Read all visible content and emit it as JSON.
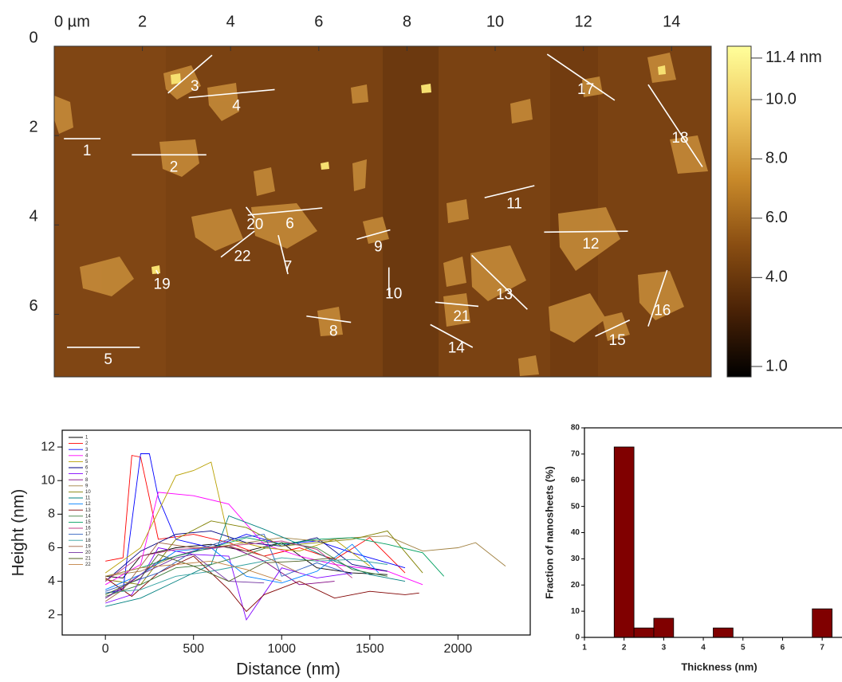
{
  "chart_data": [
    {
      "type": "image",
      "xlim": [
        0,
        14.9
      ],
      "xticks": [
        {
          "value": 0,
          "label": "0 µm"
        },
        2,
        4,
        6,
        8,
        10,
        12,
        14
      ],
      "ylim": [
        0,
        7.4
      ],
      "yticks": [
        0,
        2,
        4,
        6
      ],
      "y_reversed": true,
      "colorbar": {
        "clim": [
          0.65,
          11.8
        ],
        "ticks": [
          {
            "value": 11.4,
            "label": "11.4 nm"
          },
          {
            "value": 10,
            "label": "10.0"
          },
          {
            "value": 8,
            "label": "8.0"
          },
          {
            "value": 6,
            "label": "6.0"
          },
          {
            "value": 4,
            "label": "4.0"
          },
          {
            "value": 1,
            "label": "1.0"
          }
        ],
        "colormap": [
          "#000000",
          "#4a2206",
          "#8a4e12",
          "#c98a2a",
          "#efc860",
          "#ffff9a"
        ]
      },
      "line_color": "#ffffff",
      "lines": [
        {
          "label": "1",
          "x": [
            0.22,
            1.05
          ],
          "y": [
            2.07,
            2.07
          ]
        },
        {
          "label": "2",
          "x": [
            1.76,
            3.45
          ],
          "y": [
            2.43,
            2.43
          ]
        },
        {
          "label": "3",
          "x": [
            2.58,
            3.58
          ],
          "y": [
            1.05,
            0.2
          ]
        },
        {
          "label": "4",
          "x": [
            3.05,
            5.0
          ],
          "y": [
            1.15,
            0.97
          ]
        },
        {
          "label": "5",
          "x": [
            0.29,
            1.94
          ],
          "y": [
            6.74,
            6.74
          ]
        },
        {
          "label": "6",
          "x": [
            4.39,
            6.08
          ],
          "y": [
            3.78,
            3.62
          ]
        },
        {
          "label": "7",
          "x": [
            5.08,
            5.3
          ],
          "y": [
            4.23,
            5.1
          ]
        },
        {
          "label": "8",
          "x": [
            5.72,
            6.73
          ],
          "y": [
            6.04,
            6.18
          ]
        },
        {
          "label": "9",
          "x": [
            6.86,
            7.62
          ],
          "y": [
            4.32,
            4.11
          ]
        },
        {
          "label": "10",
          "x": [
            7.59,
            7.59
          ],
          "y": [
            4.95,
            5.59
          ]
        },
        {
          "label": "11",
          "x": [
            9.76,
            10.89
          ],
          "y": [
            3.39,
            3.12
          ]
        },
        {
          "label": "12",
          "x": [
            11.11,
            13.01
          ],
          "y": [
            4.16,
            4.14
          ]
        },
        {
          "label": "13",
          "x": [
            9.47,
            10.73
          ],
          "y": [
            4.68,
            5.89
          ]
        },
        {
          "label": "14",
          "x": [
            8.53,
            9.49
          ],
          "y": [
            6.23,
            6.74
          ]
        },
        {
          "label": "15",
          "x": [
            12.27,
            13.05
          ],
          "y": [
            6.49,
            6.13
          ]
        },
        {
          "label": "16",
          "x": [
            13.47,
            13.9
          ],
          "y": [
            6.27,
            5.01
          ]
        },
        {
          "label": "17",
          "x": [
            11.18,
            12.71
          ],
          "y": [
            0.18,
            1.21
          ]
        },
        {
          "label": "18",
          "x": [
            13.47,
            14.7
          ],
          "y": [
            0.86,
            2.7
          ]
        },
        {
          "label": "19",
          "x": [
            2.31,
            2.36
          ],
          "y": [
            5.01,
            5.1
          ]
        },
        {
          "label": "20",
          "x": [
            4.35,
            4.54
          ],
          "y": [
            3.6,
            3.84
          ]
        },
        {
          "label": "21",
          "x": [
            8.64,
            9.62
          ],
          "y": [
            5.73,
            5.82
          ]
        },
        {
          "label": "22",
          "x": [
            3.78,
            4.54
          ],
          "y": [
            4.72,
            4.14
          ]
        }
      ]
    },
    {
      "type": "line",
      "x_label": "Distance (nm)",
      "y_label": "Height (nm)",
      "xlim": [
        -245,
        2410
      ],
      "xticks": [
        0,
        500,
        1000,
        1500,
        2000
      ],
      "ylim": [
        0.8,
        13
      ],
      "yticks": [
        2,
        4,
        6,
        8,
        10,
        12
      ],
      "legend": "top-left",
      "series": [
        {
          "name": "1",
          "color": "#000000",
          "x": [
            0,
            100,
            200,
            400,
            600,
            800,
            1000,
            1200,
            1400,
            1600
          ],
          "values": [
            4.3,
            4.2,
            5.5,
            6.0,
            6.2,
            5.8,
            6.3,
            4.8,
            4.5,
            4.4
          ]
        },
        {
          "name": "2",
          "color": "#ff0000",
          "x": [
            0,
            100,
            150,
            200,
            300,
            500,
            700,
            900,
            1100,
            1300,
            1500,
            1700
          ],
          "values": [
            5.2,
            5.4,
            11.5,
            11.4,
            6.5,
            6.8,
            6.3,
            5.5,
            6.0,
            5.3,
            6.6,
            4.5
          ]
        },
        {
          "name": "3",
          "color": "#0000ff",
          "x": [
            0,
            100,
            200,
            250,
            300,
            400,
            600,
            800,
            1000,
            1200,
            1400,
            1700
          ],
          "values": [
            3.3,
            3.5,
            11.6,
            11.6,
            9.0,
            6.5,
            6.0,
            6.8,
            6.2,
            6.4,
            5.7,
            4.8
          ]
        },
        {
          "name": "4",
          "color": "#ff00ff",
          "x": [
            0,
            200,
            300,
            500,
            700,
            900,
            1100,
            1300,
            1600,
            1800
          ],
          "values": [
            3.8,
            5.0,
            9.3,
            9.1,
            8.6,
            6.2,
            5.5,
            5.0,
            4.6,
            3.8
          ]
        },
        {
          "name": "5",
          "color": "#b8a000",
          "x": [
            0,
            200,
            400,
            500,
            600,
            700,
            900,
            1100,
            1300,
            1500
          ],
          "values": [
            4.5,
            6.0,
            10.3,
            10.6,
            11.1,
            6.5,
            6.0,
            5.8,
            6.5,
            4.9
          ]
        },
        {
          "name": "6",
          "color": "#000080",
          "x": [
            0,
            200,
            400,
            600,
            800,
            1000,
            1200,
            1400,
            1600
          ],
          "values": [
            4.0,
            5.8,
            6.8,
            7.0,
            6.3,
            6.1,
            6.6,
            5.0,
            4.6
          ]
        },
        {
          "name": "7",
          "color": "#8000ff",
          "x": [
            0,
            150,
            300,
            500,
            700,
            800,
            1000,
            1200,
            1400
          ],
          "values": [
            2.7,
            3.2,
            6.0,
            5.6,
            5.5,
            1.7,
            4.8,
            4.2,
            4.5
          ]
        },
        {
          "name": "8",
          "color": "#800080",
          "x": [
            0,
            100,
            300,
            500,
            700,
            900,
            1100,
            1300
          ],
          "values": [
            3.0,
            3.6,
            5.2,
            5.8,
            6.1,
            5.2,
            3.8,
            4.0
          ]
        },
        {
          "name": "9",
          "color": "#a08040",
          "x": [
            0,
            200,
            400,
            600,
            800,
            1000,
            1200,
            1400,
            1600,
            1800,
            2000,
            2100,
            2270
          ],
          "values": [
            4.3,
            4.6,
            5.5,
            6.0,
            6.3,
            6.6,
            6.4,
            6.6,
            6.7,
            5.8,
            6.0,
            6.3,
            4.9
          ]
        },
        {
          "name": "10",
          "color": "#808000",
          "x": [
            0,
            200,
            400,
            600,
            800,
            1000,
            1200,
            1400,
            1600,
            1800
          ],
          "values": [
            4.1,
            3.8,
            6.5,
            7.6,
            7.2,
            6.1,
            6.3,
            6.5,
            7.0,
            4.5
          ]
        },
        {
          "name": "11",
          "color": "#008080",
          "x": [
            0,
            200,
            400,
            600,
            700,
            900,
            1100,
            1300,
            1500,
            1700
          ],
          "values": [
            2.5,
            3.0,
            4.0,
            5.0,
            7.9,
            7.1,
            6.2,
            5.2,
            4.4,
            4.0
          ]
        },
        {
          "name": "12",
          "color": "#0080ff",
          "x": [
            0,
            200,
            400,
            600,
            800,
            1000,
            1200,
            1400,
            1550
          ],
          "values": [
            3.5,
            4.4,
            5.8,
            6.0,
            4.3,
            3.9,
            4.6,
            6.2,
            4.5
          ]
        },
        {
          "name": "13",
          "color": "#800000",
          "x": [
            0,
            150,
            300,
            500,
            700,
            800,
            900,
            1100,
            1300,
            1500,
            1700,
            1780
          ],
          "values": [
            4.2,
            3.1,
            4.5,
            5.5,
            3.5,
            2.2,
            3.2,
            4.0,
            3.0,
            3.4,
            3.2,
            3.3
          ]
        },
        {
          "name": "14",
          "color": "#3a7d3a",
          "x": [
            0,
            200,
            400,
            600,
            800,
            1000,
            1200,
            1400,
            1600
          ],
          "values": [
            3.1,
            3.8,
            4.8,
            5.0,
            5.6,
            6.3,
            6.0,
            4.7,
            4.3
          ]
        },
        {
          "name": "15",
          "color": "#00a060",
          "x": [
            0,
            200,
            400,
            600,
            800,
            1000,
            1200,
            1400,
            1600,
            1800,
            1920
          ],
          "values": [
            4.3,
            4.8,
            5.5,
            6.0,
            6.6,
            6.2,
            6.5,
            6.6,
            6.2,
            5.7,
            4.3
          ]
        },
        {
          "name": "16",
          "color": "#c0408a",
          "x": [
            0,
            200,
            400,
            600,
            800,
            1000,
            1200,
            1400
          ],
          "values": [
            4.0,
            5.5,
            5.9,
            6.0,
            6.2,
            6.4,
            5.9,
            4.2
          ]
        },
        {
          "name": "17",
          "color": "#3060c0",
          "x": [
            0,
            300,
            500,
            700,
            900,
            1000,
            1200,
            1400
          ],
          "values": [
            3.4,
            4.5,
            5.8,
            6.5,
            6.8,
            4.3,
            5.1,
            4.4
          ]
        },
        {
          "name": "18",
          "color": "#30a0a0",
          "x": [
            0,
            200,
            400,
            600,
            800,
            1000,
            1200,
            1400,
            1600
          ],
          "values": [
            3.3,
            3.5,
            4.3,
            4.6,
            5.0,
            5.4,
            5.2,
            5.3,
            5.0
          ]
        },
        {
          "name": "19",
          "color": "#a06040",
          "x": [
            0,
            100,
            300,
            500,
            700,
            900,
            1100
          ],
          "values": [
            2.8,
            3.5,
            6.3,
            6.0,
            6.1,
            5.5,
            4.5
          ]
        },
        {
          "name": "20",
          "color": "#7030a0",
          "x": [
            0,
            200,
            400,
            500,
            700,
            900
          ],
          "values": [
            3.0,
            4.4,
            5.4,
            5.6,
            4.0,
            3.9
          ]
        },
        {
          "name": "21",
          "color": "#506020",
          "x": [
            0,
            200,
            300,
            500,
            700,
            900,
            1100,
            1300
          ],
          "values": [
            3.2,
            4.2,
            5.6,
            4.9,
            4.0,
            5.1,
            5.2,
            5.4
          ]
        },
        {
          "name": "22",
          "color": "#c08040",
          "x": [
            0,
            200,
            400,
            600,
            800,
            1000
          ],
          "values": [
            4.3,
            4.8,
            5.0,
            5.2,
            4.7,
            4.0
          ]
        }
      ]
    },
    {
      "type": "histogram",
      "x_label": "Thickness (nm)",
      "y_label": "Fraction of nanosheets (%)",
      "bins": [
        1.75,
        2.25,
        2.75,
        3.25,
        3.75,
        4.25,
        4.75,
        5.25,
        5.75,
        6.25,
        6.75,
        7.25
      ],
      "values": [
        72.7,
        3.6,
        7.3,
        0,
        0,
        3.6,
        0,
        0,
        0,
        0,
        10.9
      ],
      "color": "#800000",
      "xlim": [
        1,
        7.48
      ],
      "xticks": [
        1,
        2,
        3,
        4,
        5,
        6,
        7
      ],
      "ylim": [
        0,
        80
      ],
      "yticks": [
        0,
        10,
        20,
        30,
        40,
        50,
        60,
        70,
        80
      ]
    }
  ]
}
